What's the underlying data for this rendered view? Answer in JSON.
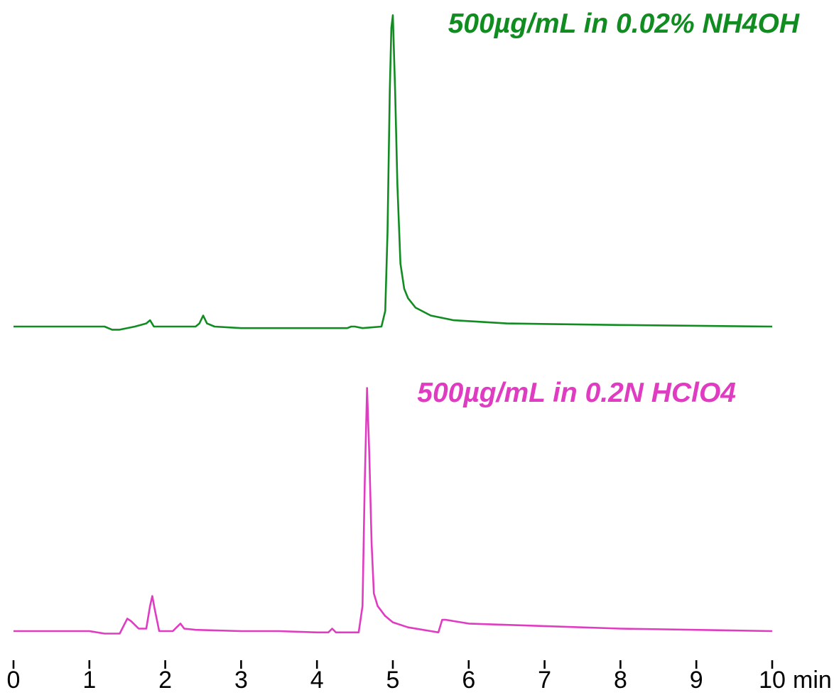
{
  "chart_data": {
    "type": "line",
    "x_unit": "min",
    "x_ticks": [
      0,
      1,
      2,
      3,
      4,
      5,
      6,
      7,
      8,
      9,
      10
    ],
    "xlim": [
      0,
      10
    ],
    "grid": false,
    "legend": "none",
    "series": [
      {
        "name": "500µg/mL in 0.02% NH4OH",
        "color": "#118c21",
        "x": [
          0,
          0.5,
          1.0,
          1.2,
          1.3,
          1.4,
          1.6,
          1.75,
          1.8,
          1.85,
          1.95,
          2.2,
          2.4,
          2.45,
          2.5,
          2.55,
          2.65,
          3.0,
          3.5,
          4.0,
          4.4,
          4.45,
          4.5,
          4.6,
          4.85,
          4.9,
          4.93,
          4.96,
          4.98,
          5.0,
          5.03,
          5.06,
          5.1,
          5.15,
          5.2,
          5.3,
          5.5,
          5.8,
          6.5,
          8.0,
          10.0
        ],
        "y": [
          0.0,
          0.0,
          0.0,
          0.0,
          -0.01,
          -0.01,
          0.0,
          0.01,
          0.02,
          0.0,
          0.0,
          0.0,
          0.0,
          0.01,
          0.035,
          0.01,
          0.0,
          -0.005,
          -0.005,
          -0.005,
          -0.005,
          0.0,
          0.0,
          -0.005,
          0.0,
          0.05,
          0.3,
          0.75,
          0.95,
          0.99,
          0.75,
          0.45,
          0.2,
          0.12,
          0.09,
          0.06,
          0.035,
          0.02,
          0.01,
          0.005,
          0.0
        ]
      },
      {
        "name": "500µg/mL in 0.2N HClO4",
        "color": "#e03cc2",
        "x": [
          0,
          0.5,
          1.0,
          1.2,
          1.3,
          1.4,
          1.45,
          1.5,
          1.55,
          1.65,
          1.75,
          1.8,
          1.83,
          1.86,
          1.92,
          2.0,
          2.1,
          2.15,
          2.2,
          2.25,
          2.4,
          3.0,
          3.5,
          4.0,
          4.15,
          4.2,
          4.25,
          4.3,
          4.55,
          4.6,
          4.63,
          4.66,
          4.69,
          4.72,
          4.75,
          4.8,
          4.9,
          5.0,
          5.2,
          5.5,
          5.6,
          5.65,
          5.7,
          5.8,
          6.0,
          6.5,
          7.0,
          8.0,
          10.0
        ],
        "y": [
          0.0,
          0.0,
          0.0,
          -0.01,
          -0.01,
          -0.01,
          0.02,
          0.05,
          0.04,
          0.01,
          0.01,
          0.1,
          0.14,
          0.09,
          0.0,
          0.0,
          0.0,
          0.015,
          0.03,
          0.01,
          0.005,
          0.0,
          0.0,
          -0.005,
          -0.005,
          0.01,
          -0.005,
          -0.005,
          -0.005,
          0.1,
          0.6,
          0.97,
          0.7,
          0.35,
          0.15,
          0.1,
          0.06,
          0.035,
          0.015,
          0.0,
          -0.005,
          0.045,
          0.045,
          0.04,
          0.03,
          0.025,
          0.02,
          0.01,
          0.0
        ]
      }
    ]
  }
}
